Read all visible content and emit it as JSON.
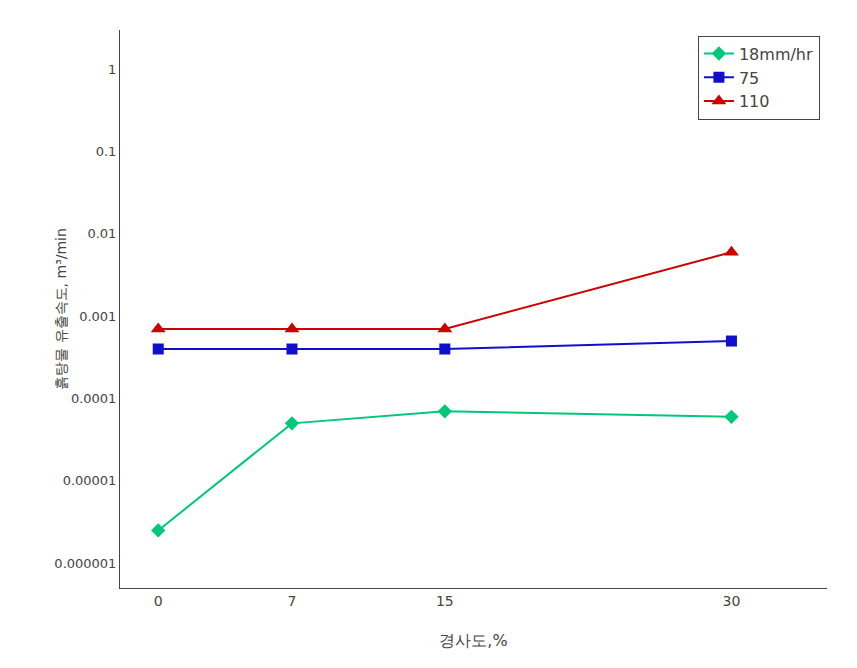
{
  "chart_data": {
    "type": "line",
    "x_label": "경사도,%",
    "y_label": "흙탕물 유출속도, m³/min",
    "x": [
      0,
      7,
      15,
      30
    ],
    "series": [
      {
        "name": "18mm/hr",
        "color": "#00C878",
        "marker": "diamond",
        "values": [
          2.5e-06,
          5e-05,
          7e-05,
          6e-05
        ]
      },
      {
        "name": "75",
        "color": "#1010CC",
        "marker": "square",
        "values": [
          0.0004,
          0.0004,
          0.0004,
          0.0005
        ]
      },
      {
        "name": "110",
        "color": "#CC0000",
        "marker": "triangle",
        "values": [
          0.0007,
          0.0007,
          0.0007,
          0.006
        ]
      }
    ],
    "log": "y",
    "xlim": [
      -2,
      35
    ],
    "xticks": [
      0,
      7,
      15,
      30
    ],
    "ylim": [
      5e-07,
      3.0
    ],
    "yticks": [
      {
        "value": 1e-06,
        "label": "0.000001"
      },
      {
        "value": 1e-05,
        "label": "0.00001"
      },
      {
        "value": 0.0001,
        "label": "0.0001"
      },
      {
        "value": 0.001,
        "label": "0.001"
      },
      {
        "value": 0.01,
        "label": "0.01"
      },
      {
        "value": 0.1,
        "label": "0.1"
      },
      1
    ],
    "grid": false,
    "legend": "upper right"
  }
}
